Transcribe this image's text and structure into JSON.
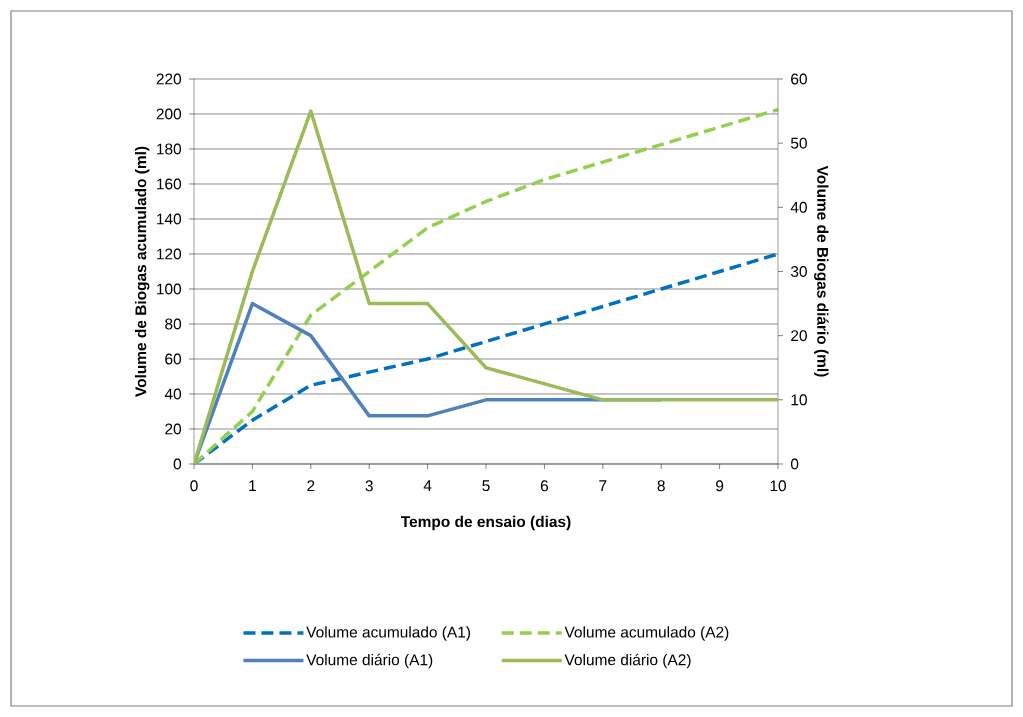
{
  "chart_data": {
    "type": "line",
    "xlabel": "Tempo de ensaio (dias)",
    "ylabel": "Volume de Biogas acumulado (ml)",
    "y2label": "Volume de Biogas diário (ml)",
    "x": [
      0,
      1,
      2,
      3,
      4,
      5,
      6,
      7,
      8,
      9,
      10
    ],
    "series": [
      {
        "name": "Volume acumulado (A1)",
        "color": "#0070c0",
        "line_style": "dashed",
        "values": [
          0,
          25,
          45,
          52.5,
          60,
          70,
          80,
          90,
          100,
          110,
          120
        ]
      },
      {
        "name": "Volume acumulado (A2)",
        "color": "#92d050",
        "line_style": "dashed",
        "values": [
          0,
          30,
          85,
          110,
          135,
          150,
          162.5,
          172.5,
          182.5,
          192.5,
          202.5
        ]
      },
      {
        "name": "Volume diário (A1)",
        "color": "#4f81bd",
        "line_style": "solid",
        "axis": "y2",
        "values": [
          0,
          25,
          20,
          7.5,
          7.5,
          10,
          10,
          10,
          10,
          null,
          null
        ]
      },
      {
        "name": "Volume diário (A2)",
        "color": "#9bbb59",
        "line_style": "solid",
        "axis": "y2",
        "values": [
          0,
          30,
          55,
          25,
          25,
          15,
          12.5,
          10,
          10,
          10,
          10
        ]
      }
    ],
    "xlim": [
      0,
      10
    ],
    "xticks": [
      0,
      1,
      2,
      3,
      4,
      5,
      6,
      7,
      8,
      9,
      10
    ],
    "ylim": [
      0,
      220
    ],
    "yticks": [
      0,
      20,
      40,
      60,
      80,
      100,
      120,
      140,
      160,
      180,
      200,
      220
    ],
    "y2lim": [
      0,
      60
    ],
    "y2ticks": [
      0,
      10,
      20,
      30,
      40,
      50,
      60
    ],
    "grid": "y",
    "legend": "bottom",
    "marker": "none"
  }
}
